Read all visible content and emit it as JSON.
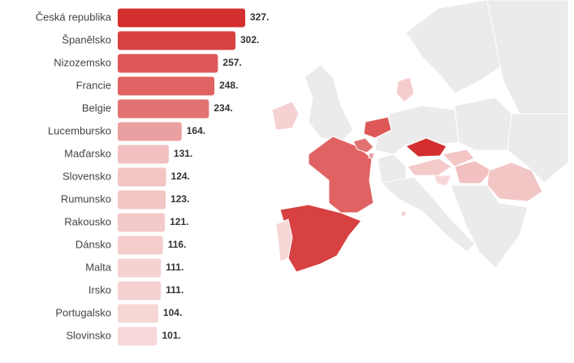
{
  "chart_data": {
    "type": "bar",
    "orientation": "horizontal",
    "categories": [
      "Česká republika",
      "Španělsko",
      "Nizozemsko",
      "Francie",
      "Belgie",
      "Lucembursko",
      "Maďarsko",
      "Slovensko",
      "Rumunsko",
      "Rakousko",
      "Dánsko",
      "Malta",
      "Irsko",
      "Portugalsko",
      "Slovinsko"
    ],
    "values": [
      327,
      302,
      257,
      248,
      234,
      164,
      131,
      124,
      123,
      121,
      116,
      111,
      111,
      104,
      101
    ],
    "value_labels": [
      "327.",
      "302.",
      "257.",
      "248.",
      "234.",
      "164.",
      "131.",
      "124.",
      "123.",
      "121.",
      "116.",
      "111.",
      "111.",
      "104.",
      "101."
    ],
    "colors": [
      "#d32f2f",
      "#d84141",
      "#df5858",
      "#e16262",
      "#e37272",
      "#eaa0a0",
      "#f2c0c0",
      "#f3c5c5",
      "#f3c6c6",
      "#f4c9c9",
      "#f5cdcd",
      "#f6d1d1",
      "#f6d1d1",
      "#f7d6d6",
      "#f7d8d8"
    ]
  }
}
